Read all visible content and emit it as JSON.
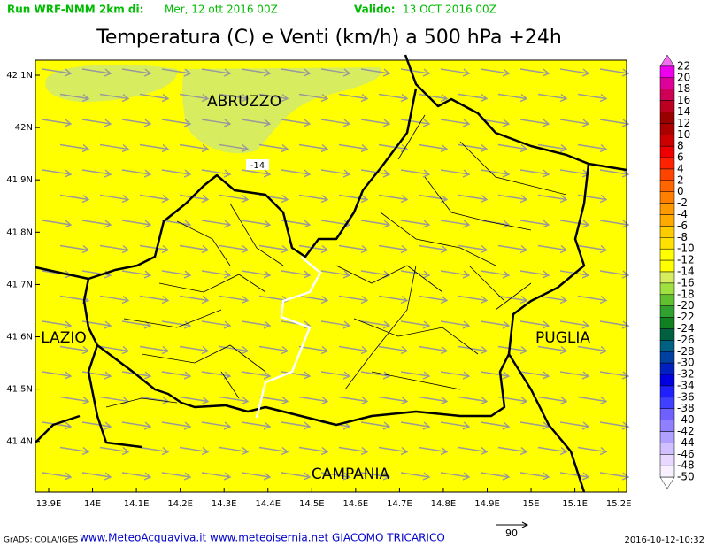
{
  "header": {
    "run_label": "Run WRF-NMM 2km di:",
    "run_date": "Mer, 12 ott 2016 00Z",
    "valid_label": "Valido:",
    "valid_date": "13 OCT 2016 00Z"
  },
  "title": "Temperatura (C) e Venti (km/h) a 500 hPa +24h",
  "lat_labels": [
    "42.1N",
    "42N",
    "41.9N",
    "41.8N",
    "41.7N",
    "41.6N",
    "41.5N",
    "41.4N"
  ],
  "lon_labels": [
    "13.9E",
    "14E",
    "14.1E",
    "14.2E",
    "14.3E",
    "14.4E",
    "14.5E",
    "14.6E",
    "14.7E",
    "14.8E",
    "14.9E",
    "15E",
    "15.1E",
    "15.2E"
  ],
  "regions": [
    "ABRUZZO",
    "LAZIO",
    "PUGLIA",
    "CAMPANIA"
  ],
  "contour_label": "-14",
  "colorbar": {
    "labels": [
      22,
      20,
      18,
      16,
      14,
      12,
      10,
      8,
      6,
      4,
      2,
      0,
      -2,
      -4,
      -6,
      -8,
      -10,
      -12,
      -14,
      -16,
      -18,
      -20,
      -22,
      -24,
      -26,
      -28,
      -30,
      -32,
      -34,
      -36,
      -38,
      -40,
      -42,
      -44,
      -46,
      -48,
      -50
    ],
    "colors": [
      "#f070f0",
      "#ee00ee",
      "#dd0099",
      "#cc0055",
      "#bb0022",
      "#990000",
      "#aa0000",
      "#cc0000",
      "#ee0000",
      "#ff2200",
      "#ff4400",
      "#ff6600",
      "#ff7f00",
      "#ff9900",
      "#ffaa00",
      "#ffcc00",
      "#ffe000",
      "#ffff00",
      "#ffff00",
      "#d8ec60",
      "#a0e040",
      "#60c030",
      "#30a030",
      "#108020",
      "#006040",
      "#006080",
      "#0040a0",
      "#0020c0",
      "#0000e0",
      "#2020ff",
      "#4040ff",
      "#7060ff",
      "#9080ff",
      "#b0a0ff",
      "#d0c0ff",
      "#e8d8ff",
      "#f8f0ff",
      "#ffffff"
    ]
  },
  "vector_scale": "90",
  "footer": {
    "grads": "GrADS: COLA/IGES",
    "credits": "www.MeteoAcquaviva.it www.meteoisernia.net GIACOMO TRICARICO",
    "timestamp": "2016-10-12-10:32"
  }
}
